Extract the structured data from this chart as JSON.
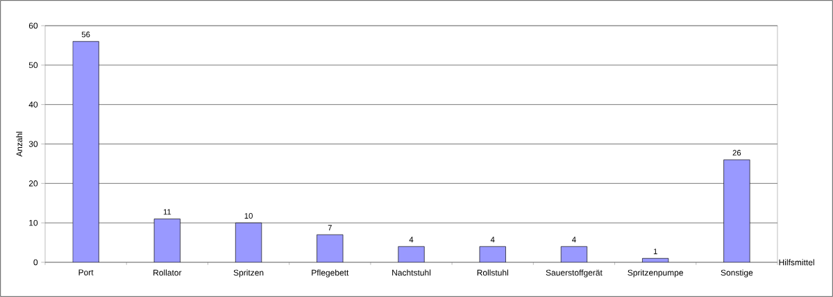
{
  "chart_data": {
    "type": "bar",
    "xlabel": "Hilfsmittel",
    "ylabel": "Anzahl",
    "categories": [
      "Port",
      "Rollator",
      "Spritzen",
      "Pflegebett",
      "Nachtstuhl",
      "Rollstuhl",
      "Sauerstoffgerät",
      "Spritzenpumpe",
      "Sonstige"
    ],
    "values": [
      56,
      11,
      10,
      7,
      4,
      4,
      4,
      1,
      26
    ],
    "color": "#9999ff",
    "ylim": [
      0,
      60
    ],
    "yticks": [
      0,
      10,
      20,
      30,
      40,
      50,
      60
    ],
    "grid": "y",
    "data_labels": true
  }
}
